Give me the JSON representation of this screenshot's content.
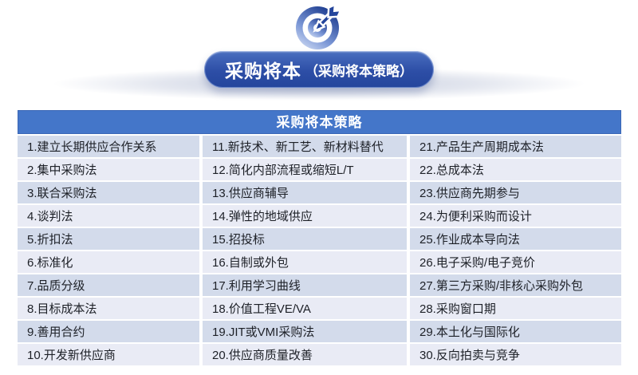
{
  "banner": {
    "title_main": "采购将本",
    "title_sub": "（采购将本策略）"
  },
  "table": {
    "header": "采购将本策略",
    "columns": [
      {
        "items": [
          "1.建立长期供应合作关系",
          "2.集中采购法",
          "3.联合采购法",
          "4.谈判法",
          "5.折扣法",
          "6.标准化",
          "7.品质分级",
          "8.目标成本法",
          "9.善用合约",
          "10.开发新供应商"
        ]
      },
      {
        "items": [
          "11.新技术、新工艺、新材料替代",
          "12.简化内部流程或缩短L/T",
          "13.供应商辅导",
          "14.弹性的地域供应",
          "15.招投标",
          "16.自制或外包",
          "17.利用学习曲线",
          "18.价值工程VE/VA",
          "19.JIT或VMI采购法",
          "20.供应商质量改善"
        ]
      },
      {
        "items": [
          "21.产品生产周期成本法",
          "22.总成本法",
          "23.供应商先期参与",
          "24.为便利采购而设计",
          "25.作业成本导向法",
          "26.电子采购/电子竞价",
          "27.第三方采购/非核心采购外包",
          "28.采购窗口期",
          "29.本土化与国际化",
          "30.反向拍卖与竞争"
        ]
      }
    ]
  },
  "colors": {
    "header_blue": "#4476c9",
    "pill_blue_dark": "#24459c",
    "pill_blue_light": "#4a6fc0",
    "row_dark": "#d3dbeb",
    "row_light": "#e9ebf5",
    "text_dark": "#1d2027",
    "icon_blue_dark": "#203f92",
    "icon_blue_light": "#dde6f8"
  }
}
